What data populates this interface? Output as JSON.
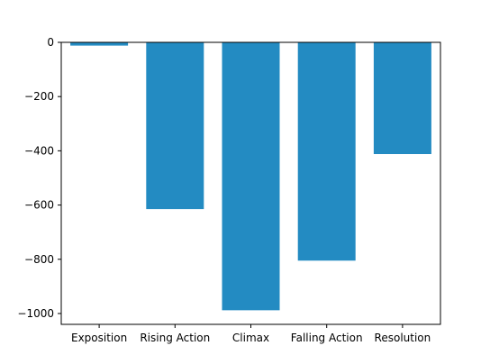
{
  "chart_data": {
    "type": "bar",
    "categories": [
      "Exposition",
      "Rising Action",
      "Climax",
      "Falling Action",
      "Resolution"
    ],
    "values": [
      -12,
      -615,
      -988,
      -805,
      -412
    ],
    "title": "",
    "xlabel": "",
    "ylabel": "",
    "ylim": [
      -1040,
      0
    ],
    "yticks": [
      0,
      -200,
      -400,
      -600,
      -800,
      -1000
    ],
    "ytick_labels": [
      "0",
      "−200",
      "−400",
      "−600",
      "−800",
      "−1000"
    ],
    "bar_color": "#238bc2",
    "grid": false,
    "legend": "none"
  }
}
